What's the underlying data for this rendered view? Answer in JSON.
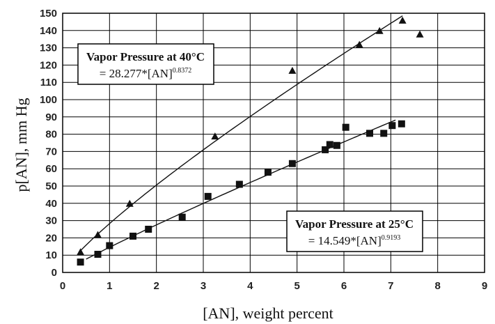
{
  "chart_data": {
    "type": "scatter",
    "xlabel": "[AN], weight percent",
    "ylabel": "p[AN], mm Hg",
    "xlim": [
      0,
      9
    ],
    "ylim": [
      0,
      150
    ],
    "x_ticks": [
      "0",
      "1",
      "2",
      "3",
      "4",
      "5",
      "6",
      "7",
      "8",
      "9"
    ],
    "y_ticks": [
      "0",
      "10",
      "20",
      "30",
      "40",
      "50",
      "60",
      "70",
      "80",
      "90",
      "100",
      "110",
      "120",
      "130",
      "140",
      "150"
    ],
    "grid": true,
    "series": [
      {
        "name": "Vapor Pressure at 40°C",
        "marker": "triangle",
        "color": "#111111",
        "x": [
          0.38,
          0.75,
          1.43,
          3.25,
          4.9,
          6.33,
          6.76,
          7.25,
          7.62
        ],
        "y": [
          12,
          22,
          40,
          79,
          117,
          132,
          140,
          146,
          138
        ]
      },
      {
        "name": "Vapor Pressure at 25°C",
        "marker": "square",
        "color": "#111111",
        "x": [
          0.38,
          0.75,
          1.0,
          1.5,
          1.83,
          2.55,
          3.1,
          3.77,
          4.38,
          4.9,
          5.6,
          5.7,
          5.85,
          6.04,
          6.55,
          6.85,
          7.03,
          7.23
        ],
        "y": [
          6,
          10.5,
          15.5,
          21,
          25,
          32,
          44,
          51,
          58,
          63,
          71,
          74,
          73.5,
          84,
          80.5,
          80.5,
          85,
          86
        ]
      }
    ],
    "fits": [
      {
        "coef": 28.277,
        "exp": 0.8372,
        "x_range": [
          0.38,
          7.25
        ]
      },
      {
        "coef": 14.549,
        "exp": 0.9193,
        "x_range": [
          0.5,
          7.1
        ]
      }
    ],
    "annotations": [
      {
        "title": "Vapor Pressure at 40°C",
        "eq_prefix": "= 28.277*[AN]",
        "eq_exp": "0.8372"
      },
      {
        "title": "Vapor Pressure at 25°C",
        "eq_prefix": "= 14.549*[AN]",
        "eq_exp": "0.9193"
      }
    ]
  }
}
